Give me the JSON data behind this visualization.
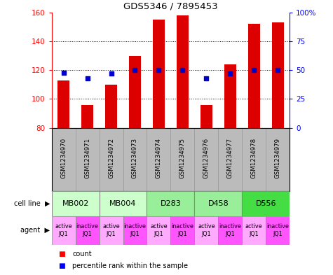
{
  "title": "GDS5346 / 7895453",
  "samples": [
    "GSM1234970",
    "GSM1234971",
    "GSM1234972",
    "GSM1234973",
    "GSM1234974",
    "GSM1234975",
    "GSM1234976",
    "GSM1234977",
    "GSM1234978",
    "GSM1234979"
  ],
  "counts": [
    113,
    96,
    110,
    130,
    155,
    158,
    96,
    124,
    152,
    153
  ],
  "percentiles": [
    48,
    43,
    47,
    50,
    50,
    50,
    43,
    47,
    50,
    50
  ],
  "cell_lines": [
    {
      "label": "MB002",
      "span": [
        0,
        2
      ],
      "color": "#ccffcc"
    },
    {
      "label": "MB004",
      "span": [
        2,
        4
      ],
      "color": "#ccffcc"
    },
    {
      "label": "D283",
      "span": [
        4,
        6
      ],
      "color": "#99ee99"
    },
    {
      "label": "D458",
      "span": [
        6,
        8
      ],
      "color": "#99ee99"
    },
    {
      "label": "D556",
      "span": [
        8,
        10
      ],
      "color": "#44dd44"
    }
  ],
  "agent_labels": [
    "active\nJQ1",
    "inactive\nJQ1",
    "active\nJQ1",
    "inactive\nJQ1",
    "active\nJQ1",
    "inactive\nJQ1",
    "active\nJQ1",
    "inactive\nJQ1",
    "active\nJQ1",
    "inactive\nJQ1"
  ],
  "agent_colors": [
    "#ffaaff",
    "#ff55ff",
    "#ffaaff",
    "#ff55ff",
    "#ffaaff",
    "#ff55ff",
    "#ffaaff",
    "#ff55ff",
    "#ffaaff",
    "#ff55ff"
  ],
  "ylim_left": [
    80,
    160
  ],
  "ylim_right": [
    0,
    100
  ],
  "yticks_left": [
    80,
    100,
    120,
    140,
    160
  ],
  "yticks_right": [
    0,
    25,
    50,
    75,
    100
  ],
  "ytick_labels_right": [
    "0",
    "25",
    "50",
    "75",
    "100%"
  ],
  "bar_color": "#dd0000",
  "dot_color": "#0000cc",
  "bar_width": 0.5,
  "dot_size": 25,
  "bg_color": "#ffffff",
  "sample_box_color": "#bbbbbb"
}
